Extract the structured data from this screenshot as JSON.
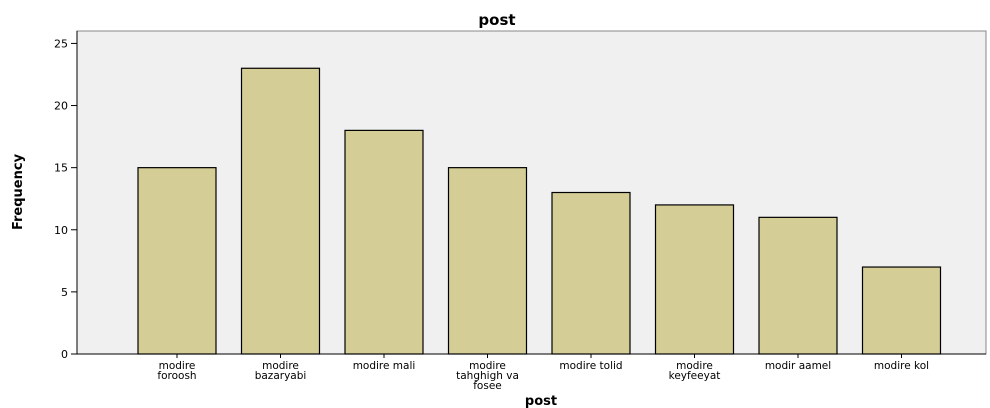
{
  "chart_data": {
    "type": "bar",
    "title": "post",
    "xlabel": "post",
    "ylabel": "Frequency",
    "categories": [
      [
        "modire",
        "foroosh"
      ],
      [
        "modire",
        "bazaryabi"
      ],
      [
        "modire mali"
      ],
      [
        "modire",
        "tahghigh va",
        "fosee"
      ],
      [
        "modire tolid"
      ],
      [
        "modire",
        "keyfeeyat"
      ],
      [
        "modir aamel"
      ],
      [
        "modire kol"
      ]
    ],
    "values": [
      15,
      23,
      18,
      15,
      13,
      12,
      11,
      7
    ],
    "ylim": [
      0,
      26
    ],
    "yticks": [
      0,
      5,
      10,
      15,
      20,
      25
    ],
    "grid": false,
    "colors": {
      "plot_background": "#f0f0f0",
      "bar_fill": "#d4cd95",
      "bar_stroke": "#000000",
      "axis": "#000000"
    }
  }
}
